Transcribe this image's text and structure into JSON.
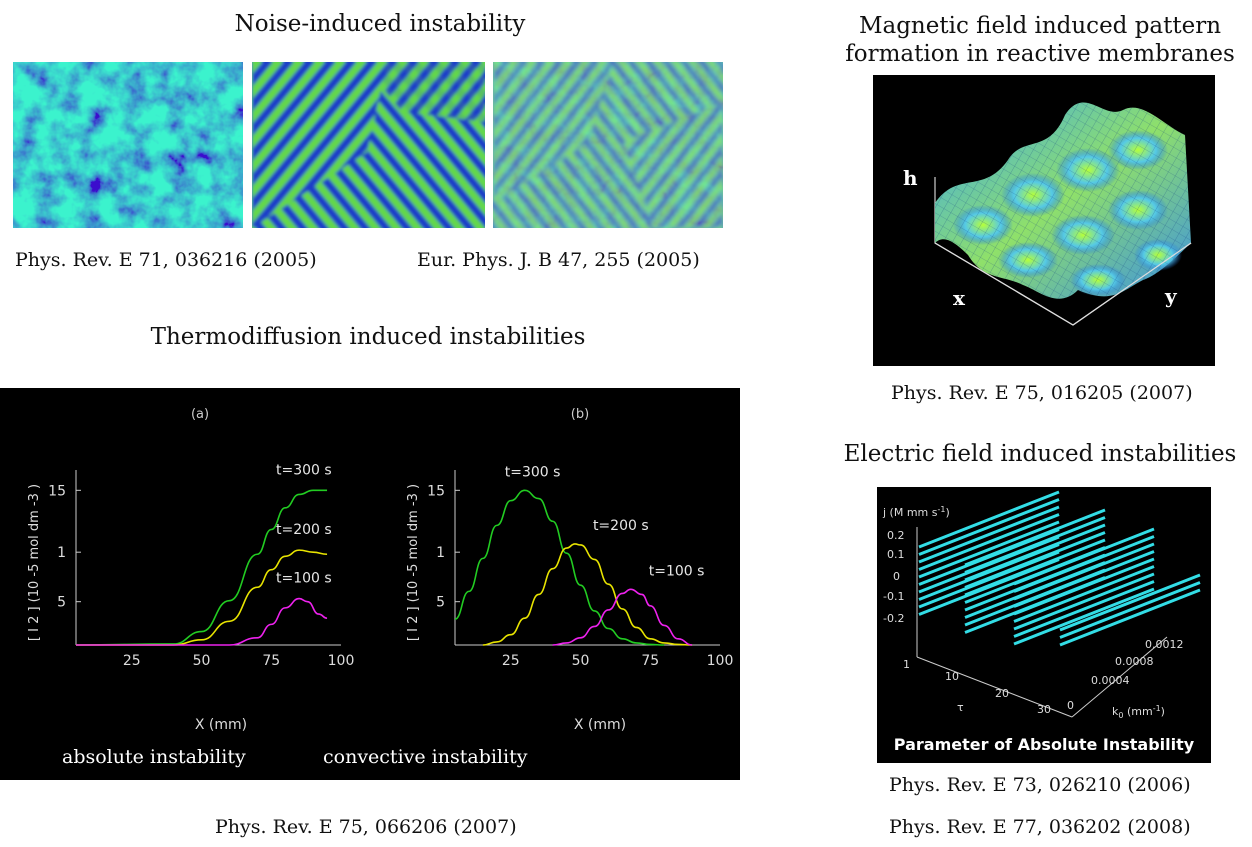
{
  "noise": {
    "title": "Noise-induced instability",
    "cite_left": "Phys. Rev. E 71, 036216 (2005)",
    "cite_right": "Eur. Phys. J. B 47, 255 (2005)"
  },
  "thermo": {
    "title": "Thermodiffusion induced instabilities",
    "cite": "Phys. Rev. E 75, 066206 (2007)",
    "caption_left": "absolute instability",
    "caption_right": "convective instability",
    "chart_data": [
      {
        "type": "line",
        "panel_label": "(a)",
        "xlabel": "X (mm)",
        "ylabel": "[ I 2 ] (10 -5 mol dm -3 )",
        "x_ticks": [
          "25",
          "50",
          "75",
          "100"
        ],
        "y_ticks": [
          "15",
          "1",
          "5"
        ],
        "series": [
          {
            "name": "t=300 s",
            "color": "#22cc22",
            "x": [
              5,
              40,
              50,
              60,
              70,
              75,
              80,
              85,
              90,
              95
            ],
            "y": [
              0,
              0.1,
              1.3,
              4.3,
              8.8,
              11.2,
              13.3,
              14.6,
              15.0,
              15.0
            ]
          },
          {
            "name": "t=200 s",
            "color": "#e8e400",
            "x": [
              5,
              40,
              50,
              60,
              70,
              75,
              80,
              85,
              90,
              95
            ],
            "y": [
              0,
              0,
              0.5,
              2.3,
              5.6,
              7.3,
              8.6,
              9.2,
              9.0,
              8.8
            ]
          },
          {
            "name": "t=100 s",
            "color": "#ee22ee",
            "x": [
              5,
              60,
              70,
              75,
              80,
              85,
              88,
              92,
              95
            ],
            "y": [
              0,
              0,
              0.7,
              2.0,
              3.6,
              4.5,
              4.2,
              3.0,
              2.6
            ]
          }
        ]
      },
      {
        "type": "line",
        "panel_label": "(b)",
        "xlabel": "X (mm)",
        "ylabel": "[ I 2 ] (10 -5 mol dm -3 )",
        "x_ticks": [
          "25",
          "50",
          "75",
          "100"
        ],
        "y_ticks": [
          "15",
          "1",
          "5"
        ],
        "series": [
          {
            "name": "t=300 s",
            "color": "#22cc22",
            "x": [
              5,
              10,
              15,
              20,
              25,
              30,
              35,
              40,
              45,
              50,
              55,
              60,
              65,
              70,
              75,
              80
            ],
            "y": [
              2.5,
              5.2,
              8.4,
              11.6,
              14.0,
              15.0,
              14.2,
              12.0,
              8.9,
              5.8,
              3.3,
              1.6,
              0.6,
              0.2,
              0.05,
              0
            ]
          },
          {
            "name": "t=200 s",
            "color": "#e8e400",
            "x": [
              15,
              20,
              25,
              30,
              35,
              40,
              45,
              48,
              50,
              55,
              60,
              65,
              70,
              75,
              80,
              85,
              90
            ],
            "y": [
              0,
              0.3,
              1.0,
              2.6,
              4.9,
              7.4,
              9.4,
              9.8,
              9.7,
              8.3,
              5.9,
              3.5,
              1.7,
              0.6,
              0.2,
              0.05,
              0
            ]
          },
          {
            "name": "t=100 s",
            "color": "#ee22ee",
            "x": [
              40,
              45,
              50,
              55,
              60,
              65,
              68,
              72,
              75,
              80,
              85,
              90
            ],
            "y": [
              0,
              0.2,
              0.7,
              1.8,
              3.4,
              5.0,
              5.4,
              4.9,
              3.8,
              1.9,
              0.6,
              0
            ]
          }
        ]
      }
    ]
  },
  "magnetic": {
    "title_line1": "Magnetic field induced pattern",
    "title_line2": "formation in reactive membranes",
    "cite": "Phys. Rev. E 75, 016205 (2007)",
    "label_h": "h",
    "label_x": "x",
    "label_y": "y"
  },
  "electric": {
    "title": "Electric field induced instabilities",
    "cite1": "Phys. Rev. E 73, 026210 (2006)",
    "cite2": "Phys. Rev. E 77, 036202 (2008)",
    "axis_j": "j (M mm s",
    "axis_j_sup": "-1",
    "j_ticks": [
      "0.2",
      "0.1",
      "0",
      "-0.1",
      "-0.2"
    ],
    "tau_ticks": [
      "1",
      "10",
      "20",
      "30"
    ],
    "tau_label": "τ",
    "k_ticks": [
      "0",
      "0.0004",
      "0.0008",
      "0.0012"
    ],
    "k_label": "k",
    "k_label_sub": "0",
    "k_label_rest": " (mm",
    "k_label_sup": "-1",
    "banner": "Parameter of Absolute Instability",
    "colors": {
      "lines": "#33dde6",
      "bg": "#000000"
    }
  }
}
